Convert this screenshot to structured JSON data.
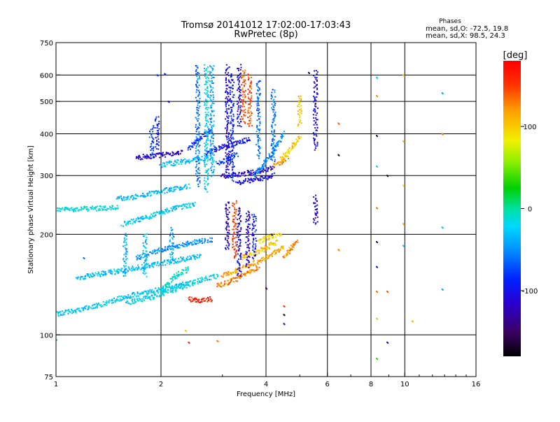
{
  "chart_data": {
    "type": "scatter",
    "title": "Tromsø 20141012 17:02:00-17:03:43",
    "subtitle": "RwPretec (8p)",
    "stats": {
      "heading": "Phases",
      "line1": "mean, sd,O: -72.5, 19.8",
      "line2": "mean, sd,X:  98.5, 24.3"
    },
    "xlabel": "Frequency [MHz]",
    "ylabel": "Stationary phase Virtual Height [km]",
    "xscale": "log",
    "yscale": "log",
    "xlim": [
      1,
      16
    ],
    "ylim": [
      75,
      750
    ],
    "xticks": [
      1,
      2,
      4,
      6,
      8,
      10,
      16
    ],
    "yticks": [
      75,
      100,
      200,
      300,
      400,
      500,
      600,
      750
    ],
    "xgrid": [
      2,
      4,
      6,
      8,
      10
    ],
    "ygrid": [
      100,
      200,
      300,
      400,
      500,
      600
    ],
    "colorbar": {
      "label": "[deg]",
      "min": -180,
      "max": 180,
      "ticks": [
        100,
        0,
        -100
      ],
      "scale": "rainbow"
    },
    "traces": [
      {
        "f": [
          1.0,
          1.5
        ],
        "h": [
          237,
          240
        ],
        "phase": -15
      },
      {
        "f": [
          1.0,
          1.3,
          1.6,
          2.0,
          2.4
        ],
        "h": [
          115,
          122,
          130,
          137,
          143
        ],
        "phase": -25
      },
      {
        "f": [
          1.15,
          1.5,
          1.9,
          2.3,
          2.6
        ],
        "h": [
          148,
          155,
          162,
          168,
          172
        ],
        "phase": -30
      },
      {
        "f": [
          1.6,
          1.9,
          2.2,
          2.6,
          2.9
        ],
        "h": [
          125,
          130,
          137,
          146,
          150
        ],
        "phase": -20
      },
      {
        "f": [
          1.7,
          2.0,
          2.4,
          2.8
        ],
        "h": [
          170,
          180,
          188,
          193
        ],
        "phase": -50
      },
      {
        "f": [
          1.55,
          1.75,
          2.0,
          2.2,
          2.5
        ],
        "h": [
          215,
          222,
          232,
          240,
          246
        ],
        "phase": -25
      },
      {
        "f": [
          1.5,
          1.8,
          2.1,
          2.4
        ],
        "h": [
          255,
          262,
          272,
          278
        ],
        "phase": -35
      },
      {
        "f": [
          1.7,
          2.0,
          2.3
        ],
        "h": [
          340,
          345,
          352
        ],
        "phase": -115
      },
      {
        "f": [
          2.0,
          2.4,
          2.8
        ],
        "h": [
          322,
          332,
          340
        ],
        "phase": -30
      },
      {
        "f": [
          2.4,
          2.6,
          2.8
        ],
        "h": [
          360,
          390,
          410
        ],
        "phase": -85
      },
      {
        "f": [
          2.7,
          3.0,
          3.3,
          3.6
        ],
        "h": [
          350,
          365,
          375,
          385
        ],
        "phase": -100
      },
      {
        "f": [
          2.9,
          3.1,
          3.3
        ],
        "h": [
          325,
          335,
          345
        ],
        "phase": -80
      },
      {
        "f": [
          3.0,
          3.3,
          3.6,
          3.9,
          4.2
        ],
        "h": [
          298,
          302,
          306,
          310,
          315
        ],
        "phase": -115
      },
      {
        "f": [
          3.3,
          3.6,
          3.9,
          4.2
        ],
        "h": [
          285,
          290,
          294,
          300
        ],
        "phase": -105
      },
      {
        "f": [
          3.7,
          3.9,
          4.1,
          4.3,
          4.5
        ],
        "h": [
          300,
          320,
          340,
          370,
          400
        ],
        "phase": -50
      },
      {
        "f": [
          4.4,
          4.6,
          4.8,
          5.0
        ],
        "h": [
          335,
          350,
          370,
          390
        ],
        "phase": 100
      },
      {
        "f": [
          4.2,
          4.4,
          4.6
        ],
        "h": [
          320,
          328,
          340
        ],
        "phase": 115
      },
      {
        "f": [
          2.4,
          2.6,
          2.8
        ],
        "h": [
          128,
          127,
          128
        ],
        "phase": 160
      },
      {
        "f": [
          2.9,
          3.2,
          3.5,
          3.8
        ],
        "h": [
          140,
          145,
          152,
          160
        ],
        "phase": 130
      },
      {
        "f": [
          3.0,
          3.3,
          3.6,
          3.9,
          4.2,
          4.5
        ],
        "h": [
          150,
          156,
          162,
          168,
          175,
          182
        ],
        "phase": 115
      },
      {
        "f": [
          3.4,
          3.7,
          4.0,
          4.3
        ],
        "h": [
          170,
          175,
          182,
          190
        ],
        "phase": 105
      },
      {
        "f": [
          3.8,
          4.1,
          4.4
        ],
        "h": [
          190,
          196,
          200
        ],
        "phase": 95
      },
      {
        "f": [
          2.0,
          2.2,
          2.4
        ],
        "h": [
          135,
          150,
          158
        ],
        "phase": -10
      },
      {
        "f": [
          4.5,
          4.7,
          4.9
        ],
        "h": [
          170,
          180,
          190
        ],
        "phase": 125
      }
    ],
    "columns": [
      {
        "f": 1.88,
        "h": [
          340,
          420
        ],
        "phase": -80
      },
      {
        "f": 1.95,
        "h": [
          360,
          450
        ],
        "phase": -95
      },
      {
        "f": 2.55,
        "h": [
          280,
          640
        ],
        "phase": -60
      },
      {
        "f": 2.7,
        "h": [
          270,
          640
        ],
        "phase": -20
      },
      {
        "f": 2.8,
        "h": [
          300,
          640
        ],
        "phase": -40
      },
      {
        "f": 3.1,
        "h": [
          300,
          640
        ],
        "phase": -110
      },
      {
        "f": 3.2,
        "h": [
          290,
          600
        ],
        "phase": -90
      },
      {
        "f": 3.35,
        "h": [
          420,
          640
        ],
        "phase": -110
      },
      {
        "f": 3.45,
        "h": [
          430,
          620
        ],
        "phase": 140
      },
      {
        "f": 3.6,
        "h": [
          420,
          600
        ],
        "phase": 145
      },
      {
        "f": 3.8,
        "h": [
          340,
          580
        ],
        "phase": -60
      },
      {
        "f": 4.2,
        "h": [
          330,
          540
        ],
        "phase": -60
      },
      {
        "f": 5.0,
        "h": [
          420,
          520
        ],
        "phase": 100
      },
      {
        "f": 5.55,
        "h": [
          360,
          620
        ],
        "phase": -110
      },
      {
        "f": 3.1,
        "h": [
          180,
          250
        ],
        "phase": -115
      },
      {
        "f": 3.25,
        "h": [
          170,
          250
        ],
        "phase": 150
      },
      {
        "f": 3.35,
        "h": [
          150,
          240
        ],
        "phase": -105
      },
      {
        "f": 3.55,
        "h": [
          160,
          235
        ],
        "phase": -110
      },
      {
        "f": 3.7,
        "h": [
          170,
          230
        ],
        "phase": -90
      },
      {
        "f": 2.15,
        "h": [
          165,
          210
        ],
        "phase": -40
      },
      {
        "f": 1.8,
        "h": [
          150,
          200
        ],
        "phase": -30
      },
      {
        "f": 1.58,
        "h": [
          150,
          200
        ],
        "phase": -35
      },
      {
        "f": 5.55,
        "h": [
          215,
          260
        ],
        "phase": -110
      }
    ],
    "scatter": [
      {
        "f": 6.45,
        "h": 346,
        "phase": -170
      },
      {
        "f": 6.45,
        "h": 430,
        "phase": 140
      },
      {
        "f": 6.45,
        "h": 180,
        "phase": 130
      },
      {
        "f": 8.3,
        "h": 590,
        "phase": -20
      },
      {
        "f": 8.3,
        "h": 520,
        "phase": 120
      },
      {
        "f": 8.3,
        "h": 395,
        "phase": -150
      },
      {
        "f": 8.3,
        "h": 320,
        "phase": -20
      },
      {
        "f": 8.3,
        "h": 240,
        "phase": 130
      },
      {
        "f": 8.3,
        "h": 190,
        "phase": -110
      },
      {
        "f": 8.3,
        "h": 160,
        "phase": -90
      },
      {
        "f": 8.3,
        "h": 135,
        "phase": 130
      },
      {
        "f": 8.3,
        "h": 112,
        "phase": 100
      },
      {
        "f": 8.3,
        "h": 85,
        "phase": 40
      },
      {
        "f": 8.9,
        "h": 300,
        "phase": -170
      },
      {
        "f": 8.9,
        "h": 95,
        "phase": -100
      },
      {
        "f": 8.9,
        "h": 135,
        "phase": 140
      },
      {
        "f": 9.9,
        "h": 600,
        "phase": 100
      },
      {
        "f": 9.9,
        "h": 380,
        "phase": 110
      },
      {
        "f": 9.9,
        "h": 280,
        "phase": 100
      },
      {
        "f": 9.9,
        "h": 215,
        "phase": 120
      },
      {
        "f": 9.9,
        "h": 185,
        "phase": -30
      },
      {
        "f": 10.5,
        "h": 110,
        "phase": 110
      },
      {
        "f": 12.8,
        "h": 530,
        "phase": -40
      },
      {
        "f": 12.8,
        "h": 400,
        "phase": 130
      },
      {
        "f": 12.8,
        "h": 210,
        "phase": -30
      },
      {
        "f": 12.8,
        "h": 137,
        "phase": -40
      },
      {
        "f": 4.0,
        "h": 138,
        "phase": -140
      },
      {
        "f": 4.5,
        "h": 122,
        "phase": 150
      },
      {
        "f": 4.5,
        "h": 115,
        "phase": -170
      },
      {
        "f": 4.5,
        "h": 108,
        "phase": -120
      },
      {
        "f": 4.15,
        "h": 200,
        "phase": -130
      },
      {
        "f": 2.4,
        "h": 95,
        "phase": 160
      },
      {
        "f": 2.35,
        "h": 103,
        "phase": 100
      },
      {
        "f": 2.9,
        "h": 96,
        "phase": 130
      },
      {
        "f": 1.0,
        "h": 97,
        "phase": -30
      },
      {
        "f": 1.2,
        "h": 170,
        "phase": -60
      },
      {
        "f": 1.95,
        "h": 600,
        "phase": -80
      },
      {
        "f": 2.05,
        "h": 605,
        "phase": -90
      },
      {
        "f": 2.1,
        "h": 500,
        "phase": -120
      },
      {
        "f": 5.3,
        "h": 610,
        "phase": -150
      }
    ]
  }
}
